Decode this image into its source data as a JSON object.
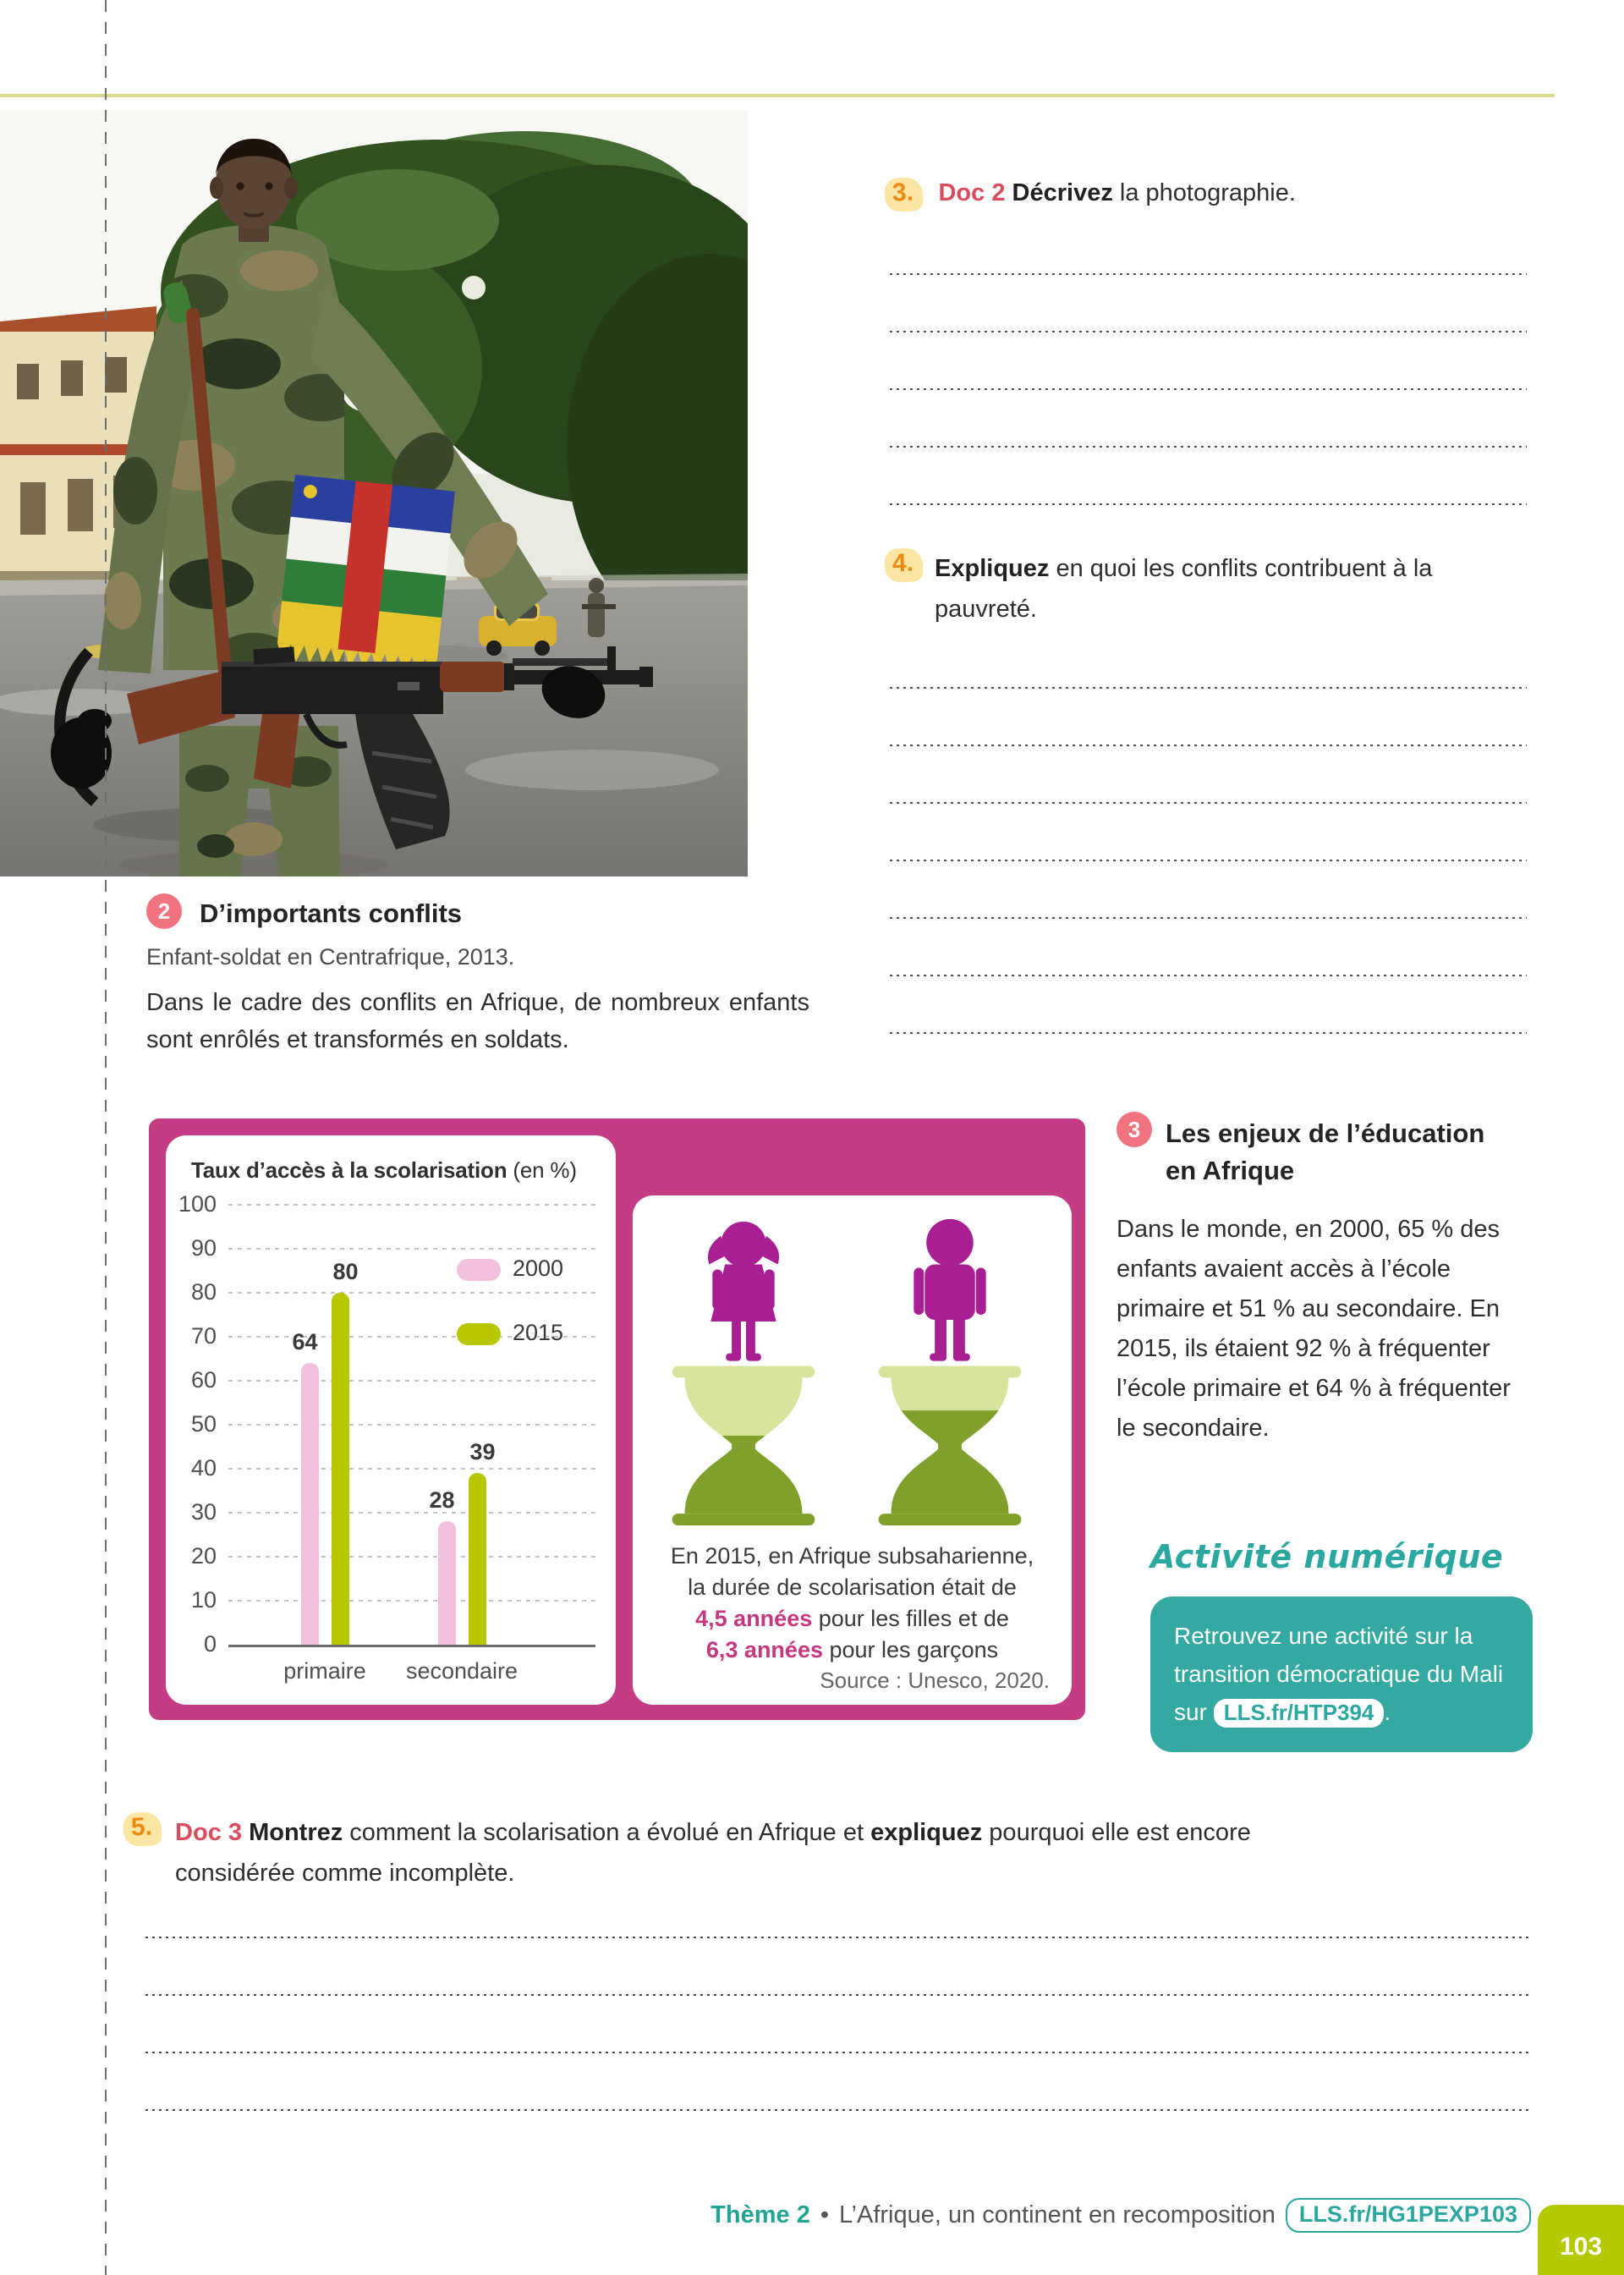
{
  "colors": {
    "magenta": "#c43c84",
    "olive_green": "#b5c900",
    "bar_pink": "#f2bfdc",
    "bar_green": "#b7c800",
    "teal": "#2aa8a0",
    "orange_number": "#ee8a10",
    "doc_red": "#d94d5e",
    "badge_pink": "#f0737f",
    "highlight_yellow": "#fbe7a3",
    "silhouette_purple": "#a81e93"
  },
  "doc2": {
    "badge": "2",
    "title": "D’importants conflits",
    "caption": "Enfant-soldat en Centrafrique, 2013.",
    "body": "Dans le cadre des conflits en Afrique, de nombreux enfants sont enrôlés et transformés en soldats."
  },
  "questions": {
    "q3": {
      "number": "3.",
      "doc_ref": "Doc 2",
      "verb": "Décrivez",
      "rest": " la photographie.",
      "answer_lines": 5
    },
    "q4": {
      "number": "4.",
      "verb": "Expliquez",
      "rest": " en quoi les conflits contribuent à la pauvreté.",
      "answer_lines": 7
    },
    "q5": {
      "number": "5.",
      "doc_ref": "Doc 3",
      "verb": "Montrez",
      "middle": " comment la scolarisation a évolué en Afrique et ",
      "verb2": "expliquez",
      "rest": " pourquoi elle est encore considérée comme incomplète.",
      "answer_lines": 4
    }
  },
  "doc3_infographic": {
    "chart_title_bold": "Taux d’accès à la scolarisation",
    "chart_title_unit": " (en %)",
    "legend": [
      "2000",
      "2015"
    ],
    "categories": [
      "primaire",
      "secondaire"
    ],
    "info_line1": "En 2015, en Afrique subsaharienne,",
    "info_line2": "la durée de scolarisation était de",
    "info_highlight1": "4,5 années",
    "info_mid1": " pour les filles et de",
    "info_highlight2": "6,3 années",
    "info_mid2": " pour les garçons",
    "source": "Source : Unesco, 2020."
  },
  "chart_data": {
    "type": "bar",
    "title": "Taux d’accès à la scolarisation (en %)",
    "categories": [
      "primaire",
      "secondaire"
    ],
    "series": [
      {
        "name": "2000",
        "values": [
          64,
          28
        ],
        "color": "#f2bfdc"
      },
      {
        "name": "2015",
        "values": [
          80,
          39
        ],
        "color": "#b7c800"
      }
    ],
    "ylabel": "",
    "xlabel": "",
    "ylim": [
      0,
      100
    ],
    "ytick_step": 10,
    "grid": true,
    "legend_position": "upper right"
  },
  "doc3_text": {
    "badge": "3",
    "title_line1": "Les enjeux de l’éducation",
    "title_line2": "en Afrique",
    "body": "Dans le monde, en 2000, 65 % des enfants avaient accès à l’école primaire et 51 % au secondaire. En 2015, ils étaient 92 % à fréquenter l’école primaire et 64 % à fréquenter le secondaire."
  },
  "activite": {
    "heading": "Activité numérique",
    "body_before": "Retrouvez une activité sur la transition démocratique du Mali sur ",
    "link": "LLS.fr/HTP394",
    "body_after": "."
  },
  "footer": {
    "theme": "Thème 2",
    "bullet": "•",
    "title": "L’Afrique, un continent en recomposition",
    "code": "LLS.fr/HG1PEXP103",
    "page_number": "103"
  }
}
